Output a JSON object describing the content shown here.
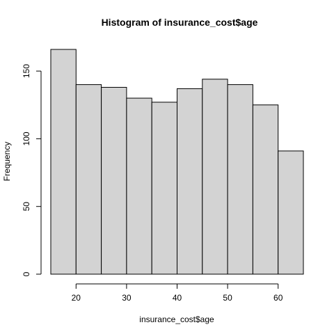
{
  "chart_data": {
    "type": "bar",
    "title": "Histogram of insurance_cost$age",
    "xlabel": "insurance_cost$age",
    "ylabel": "Frequency",
    "bins": [
      {
        "start": 15,
        "end": 20,
        "count": 166
      },
      {
        "start": 20,
        "end": 25,
        "count": 140
      },
      {
        "start": 25,
        "end": 30,
        "count": 138
      },
      {
        "start": 30,
        "end": 35,
        "count": 130
      },
      {
        "start": 35,
        "end": 40,
        "count": 127
      },
      {
        "start": 40,
        "end": 45,
        "count": 137
      },
      {
        "start": 45,
        "end": 50,
        "count": 144
      },
      {
        "start": 50,
        "end": 55,
        "count": 140
      },
      {
        "start": 55,
        "end": 60,
        "count": 125
      },
      {
        "start": 60,
        "end": 65,
        "count": 91
      }
    ],
    "xlim": [
      15,
      65
    ],
    "ylim": [
      0,
      166
    ],
    "xticks": [
      20,
      30,
      40,
      50,
      60
    ],
    "yticks": [
      0,
      50,
      100,
      150
    ],
    "grid": false,
    "colors": {
      "bar_fill": "#d3d3d3",
      "bar_edge": "#000000"
    }
  }
}
